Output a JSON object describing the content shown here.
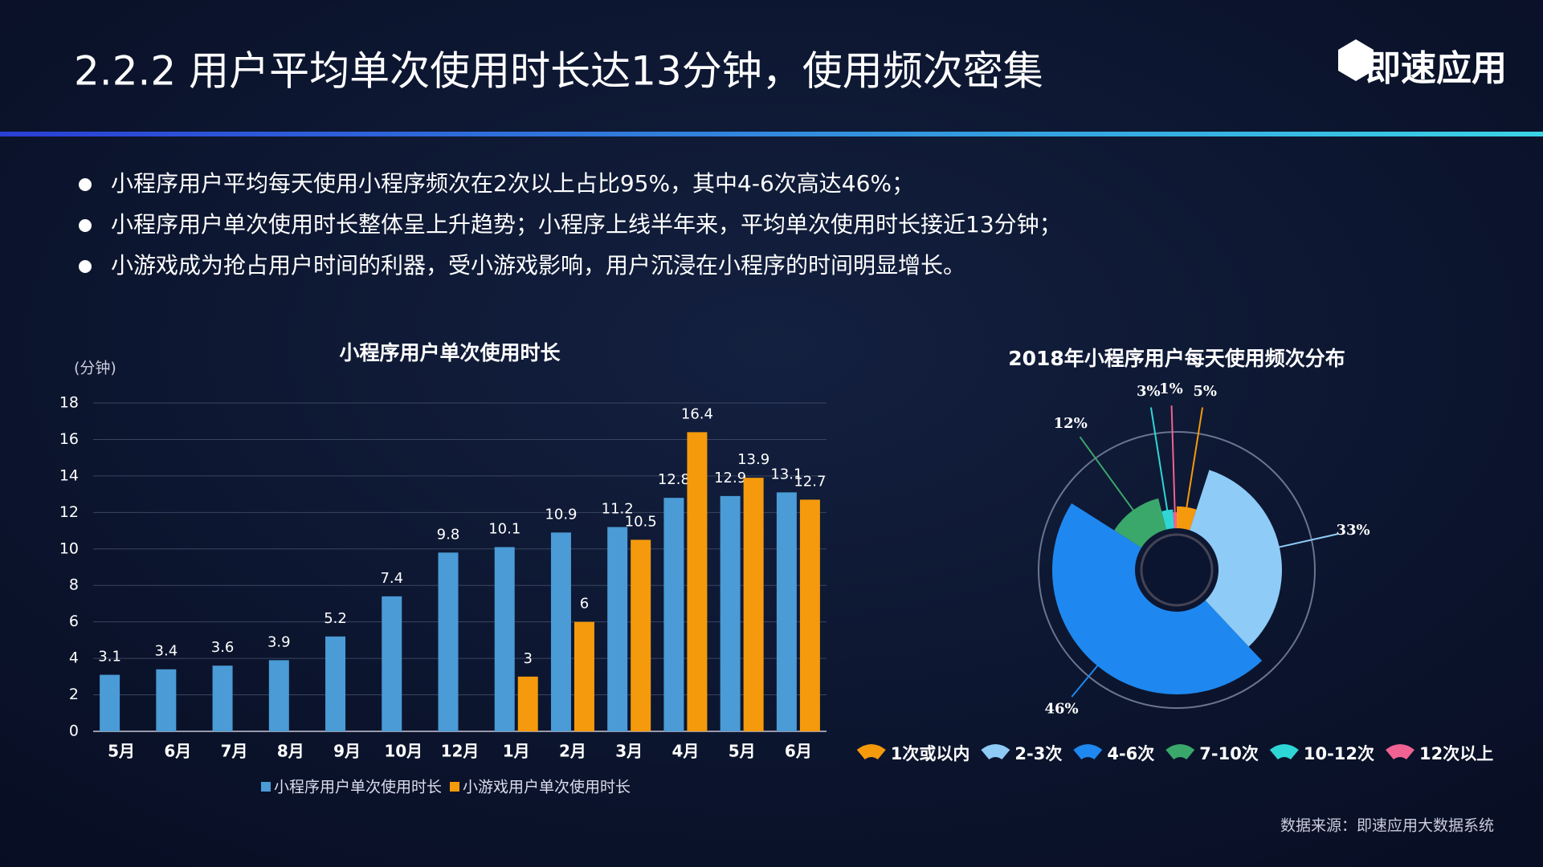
{
  "header": {
    "title": "2.2.2  用户平均单次使用时长达13分钟，使用频次密集",
    "logo": "即速应用"
  },
  "bullets": [
    "小程序用户平均每天使用小程序频次在2次以上占比95%，其中4-6次高达46%；",
    "小程序用户单次使用时长整体呈上升趋势；小程序上线半年来，平均单次使用时长接近13分钟；",
    "小游戏成为抢占用户时间的利器，受小游戏影响，用户沉浸在小程序的时间明显增长。"
  ],
  "source": "数据来源：即速应用大数据系统",
  "chart_data": [
    {
      "type": "bar",
      "title": "小程序用户单次使用时长",
      "y_label": "(分钟)",
      "categories": [
        "5月",
        "6月",
        "7月",
        "8月",
        "9月",
        "10月",
        "12月",
        "1月",
        "2月",
        "3月",
        "4月",
        "5月",
        "6月"
      ],
      "series": [
        {
          "name": "小程序用户单次使用时长",
          "color": "#4a9bd6",
          "values": [
            3.1,
            3.4,
            3.6,
            3.9,
            5.2,
            7.4,
            9.8,
            10.1,
            10.9,
            11.2,
            12.8,
            12.9,
            13.1
          ]
        },
        {
          "name": "小游戏用户单次使用时长",
          "color": "#f59a0c",
          "values": [
            null,
            null,
            null,
            null,
            null,
            null,
            null,
            3,
            6,
            10.5,
            16.4,
            13.9,
            12.7
          ]
        }
      ],
      "ylim": [
        0,
        18
      ],
      "yticks": [
        0,
        2,
        4,
        6,
        8,
        10,
        12,
        14,
        16,
        18
      ],
      "grid": true,
      "legend": "bottom"
    },
    {
      "type": "rose",
      "title": "2018年小程序用户每天使用频次分布",
      "categories": [
        "1次或以内",
        "2-3次",
        "4-6次",
        "7-10次",
        "10-12次",
        "12次以上"
      ],
      "values": [
        5,
        33,
        46,
        12,
        3,
        1
      ],
      "value_labels": [
        "5%",
        "33%",
        "46%",
        "12%",
        "3%",
        "1%"
      ],
      "colors": [
        "#f59a0c",
        "#8ecbf7",
        "#1e88f0",
        "#3aa86b",
        "#2fd6d6",
        "#f06292"
      ],
      "legend": "bottom"
    }
  ]
}
